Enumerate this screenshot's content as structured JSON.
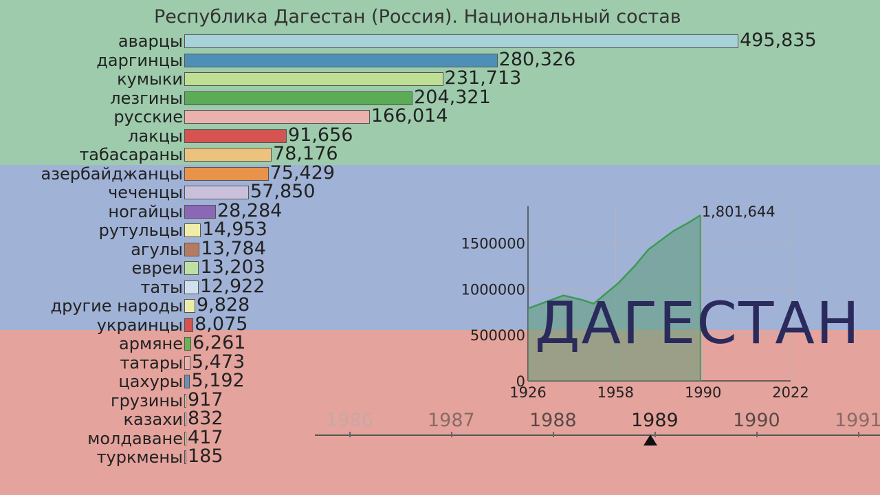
{
  "title": "Республика Дагестан (Россия). Национальный состав",
  "region_label": "ДАГЕСТАН",
  "colors": {
    "band_top": "#9dcbac",
    "band_middle": "#a0b2d6",
    "band_bottom": "#e4a39c",
    "mini_fill": "#5e9c76",
    "mini_line": "#3b9a55"
  },
  "chart_data": [
    {
      "type": "bar",
      "orientation": "horizontal",
      "categories": [
        "аварцы",
        "даргинцы",
        "кумыки",
        "лезгины",
        "русские",
        "лакцы",
        "табасараны",
        "азербайджанцы",
        "чеченцы",
        "ногайцы",
        "рутульцы",
        "агулы",
        "евреи",
        "таты",
        "другие народы",
        "украинцы",
        "армяне",
        "татары",
        "цахуры",
        "грузины",
        "казахи",
        "молдаване",
        "туркмены"
      ],
      "values": [
        495835,
        280326,
        231713,
        204321,
        166014,
        91656,
        78176,
        75429,
        57850,
        28284,
        14953,
        13784,
        13203,
        12922,
        9828,
        8075,
        6261,
        5473,
        5192,
        917,
        832,
        417,
        185
      ],
      "value_labels": [
        "495,835",
        "280,326",
        "231,713",
        "204,321",
        "166,014",
        "91,656",
        "78,176",
        "75,429",
        "57,850",
        "28,284",
        "14,953",
        "13,784",
        "13,203",
        "12,922",
        "9,828",
        "8,075",
        "6,261",
        "5,473",
        "5,192",
        "917",
        "832",
        "417",
        "185"
      ],
      "bar_colors": [
        "#a6d2d8",
        "#4e8fb6",
        "#bedf94",
        "#5bab57",
        "#eab1ad",
        "#d55350",
        "#ecc37c",
        "#e8924a",
        "#c9c0dc",
        "#8a68b5",
        "#eeeeaa",
        "#b47a62",
        "#bde0a3",
        "#cfe0ee",
        "#eaeda8",
        "#d9504d",
        "#6ab256",
        "#ebb3b0",
        "#6a8fb6",
        "#e6ebb2",
        "#d4cbe0",
        "#e8dfa4",
        "#d3a7a3"
      ],
      "title": "Республика Дагестан (Россия). Национальный состав",
      "timeline": {
        "years": [
          "1986",
          "1987",
          "1988",
          "1989",
          "1990",
          "1991"
        ],
        "current": "1989"
      }
    },
    {
      "type": "area",
      "x": [
        1926,
        1939,
        1946,
        1950,
        1959,
        1965,
        1970,
        1979,
        1985,
        1989
      ],
      "y": [
        788000,
        930000,
        880000,
        840000,
        1063000,
        1250000,
        1429000,
        1628000,
        1727000,
        1801644
      ],
      "xticks": [
        "1926",
        "1958",
        "1990",
        "2022"
      ],
      "yticks": [
        "0",
        "500000",
        "1000000",
        "1500000"
      ],
      "xlim": [
        1926,
        2022
      ],
      "ylim": [
        0,
        1900000
      ],
      "grid": true,
      "end_label": "1,801,644"
    }
  ]
}
